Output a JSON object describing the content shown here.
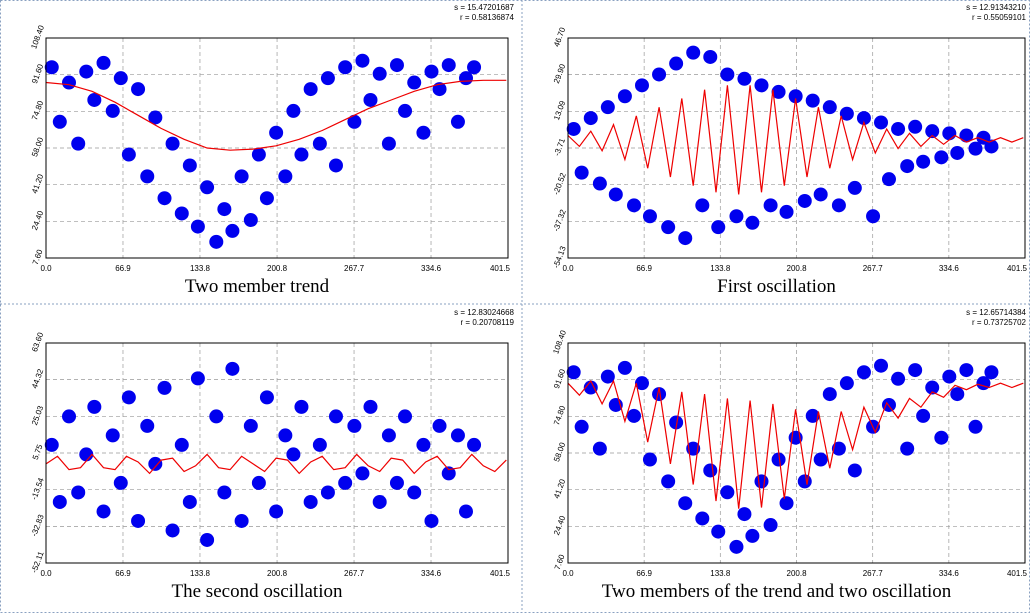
{
  "chart_data": [
    {
      "type": "scatter",
      "title": "Two member trend",
      "stats": [
        "s = 15.47201687",
        "r = 0.58136874"
      ],
      "xlim": [
        0,
        401.5
      ],
      "ylim": [
        7.6,
        108.4
      ],
      "xticks": [
        {
          "value": 0,
          "label": "0.0"
        },
        66.9,
        133.8,
        200.8,
        267.7,
        334.6,
        401.5
      ],
      "yticks": [
        {
          "value": 7.6,
          "label": "7.60"
        },
        {
          "value": 24.4,
          "label": "24.40"
        },
        {
          "value": 41.2,
          "label": "41.20"
        },
        {
          "value": 58,
          "label": "58.00"
        },
        {
          "value": 74.8,
          "label": "74.80"
        },
        {
          "value": 91.6,
          "label": "91.60"
        },
        {
          "value": 108.4,
          "label": "108.40"
        }
      ],
      "grid": true,
      "points": {
        "color": "#0000ee",
        "x": [
          5,
          12,
          20,
          28,
          35,
          42,
          50,
          58,
          65,
          72,
          80,
          88,
          95,
          103,
          110,
          118,
          125,
          132,
          140,
          148,
          155,
          162,
          170,
          178,
          185,
          192,
          200,
          208,
          215,
          222,
          230,
          238,
          245,
          252,
          260,
          268,
          275,
          282,
          290,
          298,
          305,
          312,
          320,
          328,
          335,
          342,
          350,
          358,
          365,
          372
        ],
        "y": [
          95,
          70,
          88,
          60,
          93,
          80,
          97,
          75,
          90,
          55,
          85,
          45,
          72,
          35,
          60,
          28,
          50,
          22,
          40,
          15,
          30,
          20,
          45,
          25,
          55,
          35,
          65,
          45,
          75,
          55,
          85,
          60,
          90,
          50,
          95,
          70,
          98,
          80,
          92,
          60,
          96,
          75,
          88,
          65,
          93,
          85,
          96,
          70,
          90,
          95
        ]
      },
      "line": {
        "color": "#ee0000",
        "x": [
          0,
          20,
          40,
          60,
          80,
          100,
          120,
          140,
          160,
          180,
          200,
          220,
          240,
          260,
          280,
          300,
          320,
          340,
          360,
          380,
          400
        ],
        "y": [
          88,
          87,
          84,
          79,
          73,
          67,
          62,
          58,
          57,
          57.5,
          59,
          62,
          66,
          71,
          76,
          80,
          84,
          87,
          88.5,
          89,
          89
        ]
      }
    },
    {
      "type": "scatter",
      "title": "First oscillation",
      "stats": [
        "s = 12.91343210",
        "r = 0.55059101"
      ],
      "xlim": [
        0,
        401.5
      ],
      "ylim": [
        -54.13,
        46.7
      ],
      "xticks": [
        {
          "value": 0,
          "label": "0.0"
        },
        66.9,
        133.8,
        200.8,
        267.7,
        334.6,
        401.5
      ],
      "yticks": [
        -54.13,
        -37.32,
        -20.52,
        -3.71,
        13.09,
        {
          "value": 29.9,
          "label": "29.90"
        },
        {
          "value": 46.7,
          "label": "46.70"
        }
      ],
      "grid": true,
      "points": {
        "color": "#0000ee",
        "x": [
          5,
          12,
          20,
          28,
          35,
          42,
          50,
          58,
          65,
          72,
          80,
          88,
          95,
          103,
          110,
          118,
          125,
          132,
          140,
          148,
          155,
          162,
          170,
          178,
          185,
          192,
          200,
          208,
          215,
          222,
          230,
          238,
          245,
          252,
          260,
          268,
          275,
          282,
          290,
          298,
          305,
          312,
          320,
          328,
          335,
          342,
          350,
          358,
          365,
          372
        ],
        "y": [
          5,
          -15,
          10,
          -20,
          15,
          -25,
          20,
          -30,
          25,
          -35,
          30,
          -40,
          35,
          -45,
          40,
          -30,
          38,
          -40,
          30,
          -35,
          28,
          -38,
          25,
          -30,
          22,
          -33,
          20,
          -28,
          18,
          -25,
          15,
          -30,
          12,
          -22,
          10,
          -35,
          8,
          -18,
          5,
          -12,
          6,
          -10,
          4,
          -8,
          3,
          -6,
          2,
          -4,
          1,
          -3
        ]
      },
      "line": {
        "color": "#ee0000",
        "x": [
          0,
          10,
          20,
          30,
          40,
          50,
          60,
          70,
          80,
          90,
          100,
          110,
          120,
          130,
          140,
          150,
          160,
          170,
          180,
          190,
          200,
          210,
          220,
          230,
          240,
          250,
          260,
          270,
          280,
          290,
          300,
          310,
          320,
          330,
          340,
          350,
          360,
          370,
          380,
          390,
          400
        ],
        "y": [
          2,
          -3,
          4,
          -5,
          7,
          -9,
          11,
          -13,
          15,
          -17,
          19,
          -21,
          23,
          -24,
          25,
          -25,
          25,
          -24,
          23,
          -21,
          19,
          -17,
          15,
          -13,
          11,
          -9,
          8,
          -6,
          5,
          -4,
          3,
          -3,
          2,
          -2,
          2,
          -1,
          1,
          -1,
          1,
          -1,
          1
        ]
      }
    },
    {
      "type": "scatter",
      "title": "The second oscillation",
      "stats": [
        "s = 12.83024668",
        "r = 0.20708119"
      ],
      "xlim": [
        0,
        401.5
      ],
      "ylim": [
        -52.11,
        63.6
      ],
      "xticks": [
        {
          "value": 0,
          "label": "0.0"
        },
        66.9,
        133.8,
        200.8,
        267.7,
        334.6,
        401.5
      ],
      "yticks": [
        -52.11,
        -32.83,
        -13.54,
        5.75,
        25.03,
        44.32,
        {
          "value": 63.6,
          "label": "63.60"
        }
      ],
      "grid": true,
      "points": {
        "color": "#0000ee",
        "x": [
          5,
          12,
          20,
          28,
          35,
          42,
          50,
          58,
          65,
          72,
          80,
          88,
          95,
          103,
          110,
          118,
          125,
          132,
          140,
          148,
          155,
          162,
          170,
          178,
          185,
          192,
          200,
          208,
          215,
          222,
          230,
          238,
          245,
          252,
          260,
          268,
          275,
          282,
          290,
          298,
          305,
          312,
          320,
          328,
          335,
          342,
          350,
          358,
          365,
          372
        ],
        "y": [
          10,
          -20,
          25,
          -15,
          5,
          30,
          -25,
          15,
          -10,
          35,
          -30,
          20,
          0,
          40,
          -35,
          10,
          -20,
          45,
          -40,
          25,
          -15,
          50,
          -30,
          20,
          -10,
          35,
          -25,
          15,
          5,
          30,
          -20,
          10,
          -15,
          25,
          -10,
          20,
          -5,
          30,
          -20,
          15,
          -10,
          25,
          -15,
          10,
          -30,
          20,
          -5,
          15,
          -25,
          10
        ]
      },
      "line": {
        "color": "#ee0000",
        "x": [
          0,
          10,
          20,
          30,
          40,
          50,
          60,
          70,
          80,
          90,
          100,
          110,
          120,
          130,
          140,
          150,
          160,
          170,
          180,
          190,
          200,
          210,
          220,
          230,
          240,
          250,
          260,
          270,
          280,
          290,
          300,
          310,
          320,
          330,
          340,
          350,
          360,
          370,
          380,
          390,
          400
        ],
        "y": [
          0,
          4,
          -3,
          -2,
          5,
          -2,
          -3,
          4,
          1,
          -5,
          2,
          3,
          -4,
          -1,
          5,
          -2,
          -3,
          4,
          0,
          -4,
          3,
          2,
          -5,
          1,
          4,
          -3,
          -2,
          5,
          -1,
          -4,
          3,
          2,
          -5,
          1,
          4,
          -3,
          -2,
          5,
          -1,
          -4,
          2
        ]
      }
    },
    {
      "type": "scatter",
      "title": "Two members of the trend and two oscillation",
      "stats": [
        "s = 12.65714384",
        "r = 0.73725702"
      ],
      "xlim": [
        0,
        401.5
      ],
      "ylim": [
        7.6,
        108.4
      ],
      "xticks": [
        {
          "value": 0,
          "label": "0.0"
        },
        66.9,
        133.8,
        200.8,
        267.7,
        334.6,
        401.5
      ],
      "yticks": [
        {
          "value": 7.6,
          "label": "7.60"
        },
        {
          "value": 24.4,
          "label": "24.40"
        },
        {
          "value": 41.2,
          "label": "41.20"
        },
        {
          "value": 58,
          "label": "58.00"
        },
        {
          "value": 74.8,
          "label": "74.80"
        },
        {
          "value": 91.6,
          "label": "91.60"
        },
        {
          "value": 108.4,
          "label": "108.40"
        }
      ],
      "grid": true,
      "points": {
        "color": "#0000ee",
        "x": [
          5,
          12,
          20,
          28,
          35,
          42,
          50,
          58,
          65,
          72,
          80,
          88,
          95,
          103,
          110,
          118,
          125,
          132,
          140,
          148,
          155,
          162,
          170,
          178,
          185,
          192,
          200,
          208,
          215,
          222,
          230,
          238,
          245,
          252,
          260,
          268,
          275,
          282,
          290,
          298,
          305,
          312,
          320,
          328,
          335,
          342,
          350,
          358,
          365,
          372
        ],
        "y": [
          95,
          70,
          88,
          60,
          93,
          80,
          97,
          75,
          90,
          55,
          85,
          45,
          72,
          35,
          60,
          28,
          50,
          22,
          40,
          15,
          30,
          20,
          45,
          25,
          55,
          35,
          65,
          45,
          75,
          55,
          85,
          60,
          90,
          50,
          95,
          70,
          98,
          80,
          92,
          60,
          96,
          75,
          88,
          65,
          93,
          85,
          96,
          70,
          90,
          95
        ]
      },
      "line": {
        "color": "#ee0000",
        "x": [
          0,
          10,
          20,
          30,
          40,
          50,
          60,
          70,
          80,
          90,
          100,
          110,
          120,
          130,
          140,
          150,
          160,
          170,
          180,
          190,
          200,
          210,
          220,
          230,
          240,
          250,
          260,
          270,
          280,
          290,
          300,
          310,
          320,
          330,
          340,
          350,
          360,
          370,
          380,
          390,
          400
        ],
        "y": [
          90,
          84.5,
          91,
          80.5,
          91,
          72.5,
          90,
          63,
          88,
          53,
          86,
          43.5,
          85,
          36,
          83,
          32.5,
          82,
          33,
          80.5,
          37,
          78,
          43.5,
          77,
          51,
          77,
          59.5,
          79,
          67.5,
          81,
          74,
          83,
          79,
          86,
          83.5,
          89,
          87,
          89.5,
          88,
          90,
          88,
          90
        ]
      }
    }
  ]
}
